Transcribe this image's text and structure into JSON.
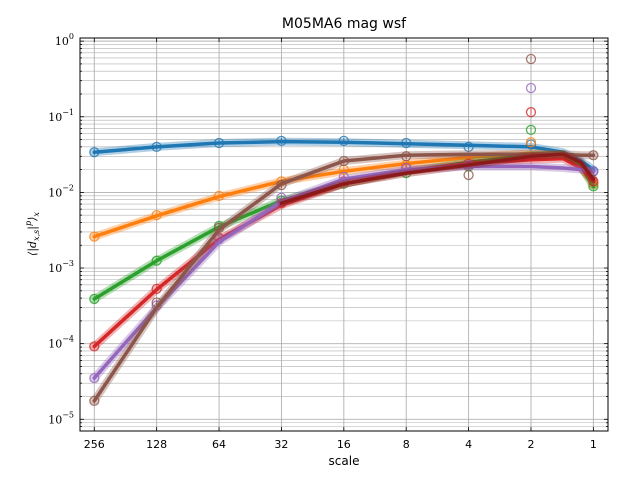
{
  "chart_data": {
    "type": "line",
    "title": "M05MA6 mag wsf",
    "xlabel": "scale",
    "ylabel": "⟨|d_{x,s}|^p⟩_x",
    "x_scale": "log2-reversed",
    "y_scale": "log",
    "xlim": [
      300,
      0.85
    ],
    "ylim": [
      7e-06,
      1.1
    ],
    "x_ticks": [
      256,
      128,
      64,
      32,
      16,
      8,
      4,
      2,
      1
    ],
    "x_tick_labels": [
      "256",
      "128",
      "64",
      "32",
      "16",
      "8",
      "4",
      "2",
      "1"
    ],
    "y_tick_labels": [
      {
        "base": "10",
        "exp": "−5",
        "value": 1e-05
      },
      {
        "base": "10",
        "exp": "−4",
        "value": 0.0001
      },
      {
        "base": "10",
        "exp": "−3",
        "value": 0.001
      },
      {
        "base": "10",
        "exp": "−2",
        "value": 0.01
      },
      {
        "base": "10",
        "exp": "−1",
        "value": 0.1
      },
      {
        "base": "10",
        "exp": "0",
        "value": 1
      }
    ],
    "grid": true,
    "marker": "open-circle",
    "series": [
      {
        "color": "#1f77b4",
        "points": [
          {
            "x": 256,
            "y": 0.034
          },
          {
            "x": 128,
            "y": 0.04
          },
          {
            "x": 64,
            "y": 0.045
          },
          {
            "x": 32,
            "y": 0.048
          },
          {
            "x": 16,
            "y": 0.048
          },
          {
            "x": 8,
            "y": 0.045
          },
          {
            "x": 4,
            "y": 0.04
          },
          {
            "x": 2,
            "y": 0.043
          },
          {
            "x": 1,
            "y": 0.019
          }
        ],
        "curve": [
          {
            "x": 256,
            "y": 0.034
          },
          {
            "x": 128,
            "y": 0.04
          },
          {
            "x": 64,
            "y": 0.045
          },
          {
            "x": 32,
            "y": 0.047
          },
          {
            "x": 16,
            "y": 0.046
          },
          {
            "x": 8,
            "y": 0.044
          },
          {
            "x": 4,
            "y": 0.042
          },
          {
            "x": 2,
            "y": 0.04
          },
          {
            "x": 1.4,
            "y": 0.034
          },
          {
            "x": 1.15,
            "y": 0.026
          },
          {
            "x": 1,
            "y": 0.02
          }
        ]
      },
      {
        "color": "#ff7f0e",
        "points": [
          {
            "x": 256,
            "y": 0.0026
          },
          {
            "x": 128,
            "y": 0.005
          },
          {
            "x": 64,
            "y": 0.009
          },
          {
            "x": 32,
            "y": 0.014
          },
          {
            "x": 16,
            "y": 0.02
          },
          {
            "x": 8,
            "y": 0.023
          },
          {
            "x": 4,
            "y": 0.028
          },
          {
            "x": 2,
            "y": 0.046
          },
          {
            "x": 1,
            "y": 0.013
          }
        ],
        "curve": [
          {
            "x": 256,
            "y": 0.0026
          },
          {
            "x": 128,
            "y": 0.0049
          },
          {
            "x": 64,
            "y": 0.0088
          },
          {
            "x": 32,
            "y": 0.014
          },
          {
            "x": 16,
            "y": 0.019
          },
          {
            "x": 8,
            "y": 0.024
          },
          {
            "x": 4,
            "y": 0.029
          },
          {
            "x": 2,
            "y": 0.033
          },
          {
            "x": 1.4,
            "y": 0.031
          },
          {
            "x": 1.15,
            "y": 0.022
          },
          {
            "x": 1,
            "y": 0.013
          }
        ]
      },
      {
        "color": "#2ca02c",
        "points": [
          {
            "x": 256,
            "y": 0.00039
          },
          {
            "x": 128,
            "y": 0.00125
          },
          {
            "x": 64,
            "y": 0.0036
          },
          {
            "x": 32,
            "y": 0.0078
          },
          {
            "x": 16,
            "y": 0.013
          },
          {
            "x": 8,
            "y": 0.018
          },
          {
            "x": 4,
            "y": 0.022
          },
          {
            "x": 2,
            "y": 0.067
          },
          {
            "x": 1,
            "y": 0.012
          }
        ],
        "curve": [
          {
            "x": 256,
            "y": 0.00039
          },
          {
            "x": 128,
            "y": 0.00125
          },
          {
            "x": 64,
            "y": 0.0035
          },
          {
            "x": 32,
            "y": 0.0078
          },
          {
            "x": 16,
            "y": 0.013
          },
          {
            "x": 8,
            "y": 0.019
          },
          {
            "x": 4,
            "y": 0.025
          },
          {
            "x": 2,
            "y": 0.031
          },
          {
            "x": 1.4,
            "y": 0.032
          },
          {
            "x": 1.15,
            "y": 0.022
          },
          {
            "x": 1,
            "y": 0.012
          }
        ]
      },
      {
        "color": "#d62728",
        "points": [
          {
            "x": 256,
            "y": 9.2e-05
          },
          {
            "x": 128,
            "y": 0.00053
          },
          {
            "x": 64,
            "y": 0.0025
          },
          {
            "x": 32,
            "y": 0.0072
          },
          {
            "x": 16,
            "y": 0.014
          },
          {
            "x": 8,
            "y": 0.021
          },
          {
            "x": 4,
            "y": 0.024
          },
          {
            "x": 2,
            "y": 0.115
          },
          {
            "x": 1,
            "y": 0.014
          }
        ],
        "curve": [
          {
            "x": 256,
            "y": 9.2e-05
          },
          {
            "x": 128,
            "y": 0.00052
          },
          {
            "x": 64,
            "y": 0.0024
          },
          {
            "x": 32,
            "y": 0.0068
          },
          {
            "x": 16,
            "y": 0.013
          },
          {
            "x": 8,
            "y": 0.019
          },
          {
            "x": 4,
            "y": 0.024
          },
          {
            "x": 2,
            "y": 0.027
          },
          {
            "x": 1.4,
            "y": 0.028
          },
          {
            "x": 1.15,
            "y": 0.021
          },
          {
            "x": 1,
            "y": 0.014
          }
        ]
      },
      {
        "color": "#9467bd",
        "points": [
          {
            "x": 256,
            "y": 3.5e-05
          },
          {
            "x": 128,
            "y": 0.00032
          },
          {
            "x": 64,
            "y": 0.0024
          },
          {
            "x": 32,
            "y": 0.0085
          },
          {
            "x": 16,
            "y": 0.016
          },
          {
            "x": 8,
            "y": 0.021
          },
          {
            "x": 4,
            "y": 0.023
          },
          {
            "x": 2,
            "y": 0.24
          },
          {
            "x": 1,
            "y": 0.019
          }
        ],
        "curve": [
          {
            "x": 256,
            "y": 3.5e-05
          },
          {
            "x": 128,
            "y": 0.0003
          },
          {
            "x": 64,
            "y": 0.0022
          },
          {
            "x": 32,
            "y": 0.0075
          },
          {
            "x": 16,
            "y": 0.015
          },
          {
            "x": 8,
            "y": 0.02
          },
          {
            "x": 4,
            "y": 0.022
          },
          {
            "x": 2,
            "y": 0.022
          },
          {
            "x": 1.4,
            "y": 0.021
          },
          {
            "x": 1.15,
            "y": 0.02
          },
          {
            "x": 1,
            "y": 0.019
          }
        ]
      },
      {
        "color": "#8c564b",
        "points": [
          {
            "x": 256,
            "y": 1.75e-05
          },
          {
            "x": 128,
            "y": 0.00035
          },
          {
            "x": 64,
            "y": 0.0034
          },
          {
            "x": 32,
            "y": 0.0125
          },
          {
            "x": 16,
            "y": 0.026
          },
          {
            "x": 8,
            "y": 0.03
          },
          {
            "x": 4,
            "y": 0.017
          },
          {
            "x": 2,
            "y": 0.58
          },
          {
            "x": 1,
            "y": 0.031
          }
        ],
        "curve": [
          {
            "x": 256,
            "y": 1.75e-05
          },
          {
            "x": 128,
            "y": 0.0003
          },
          {
            "x": 64,
            "y": 0.0032
          },
          {
            "x": 32,
            "y": 0.013
          },
          {
            "x": 16,
            "y": 0.026
          },
          {
            "x": 8,
            "y": 0.031
          },
          {
            "x": 4,
            "y": 0.032
          },
          {
            "x": 2,
            "y": 0.032
          },
          {
            "x": 1.4,
            "y": 0.032
          },
          {
            "x": 1.15,
            "y": 0.031
          },
          {
            "x": 1,
            "y": 0.031
          }
        ]
      },
      {
        "color": "#8b1a1a",
        "points": [],
        "curve": [
          {
            "x": 32,
            "y": 0.0072
          },
          {
            "x": 16,
            "y": 0.013
          },
          {
            "x": 8,
            "y": 0.018
          },
          {
            "x": 4,
            "y": 0.023
          },
          {
            "x": 2,
            "y": 0.03
          },
          {
            "x": 1.4,
            "y": 0.032
          },
          {
            "x": 1.15,
            "y": 0.025
          },
          {
            "x": 1,
            "y": 0.015
          }
        ]
      }
    ]
  }
}
